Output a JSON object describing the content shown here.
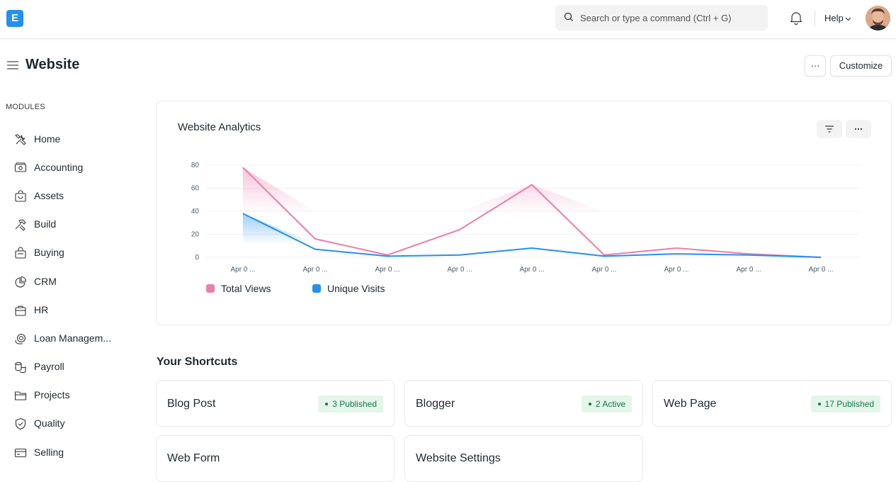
{
  "brand": {
    "logo_letter": "E",
    "color": "#2490ef"
  },
  "navbar": {
    "search_placeholder": "Search or type a command (Ctrl + G)",
    "help_label": "Help"
  },
  "page": {
    "title": "Website",
    "more_label": "···",
    "customize_label": "Customize"
  },
  "sidebar": {
    "section_label": "MODULES",
    "items": [
      {
        "label": "Home",
        "icon": "tools-icon"
      },
      {
        "label": "Accounting",
        "icon": "money-icon"
      },
      {
        "label": "Assets",
        "icon": "bag-icon"
      },
      {
        "label": "Build",
        "icon": "hammer-icon"
      },
      {
        "label": "Buying",
        "icon": "cart-icon"
      },
      {
        "label": "CRM",
        "icon": "chart-pie-icon"
      },
      {
        "label": "HR",
        "icon": "briefcase-icon"
      },
      {
        "label": "Loan Managem...",
        "icon": "loan-icon"
      },
      {
        "label": "Payroll",
        "icon": "coins-icon"
      },
      {
        "label": "Projects",
        "icon": "folder-icon"
      },
      {
        "label": "Quality",
        "icon": "shield-icon"
      },
      {
        "label": "Selling",
        "icon": "card-icon"
      }
    ]
  },
  "analytics": {
    "title": "Website Analytics",
    "chart_data": {
      "type": "line",
      "categories": [
        "Apr 0 ...",
        "Apr 0 ...",
        "Apr 0 ...",
        "Apr 0 ...",
        "Apr 0 ...",
        "Apr 0 ...",
        "Apr 0 ...",
        "Apr 0 ...",
        "Apr 0 ..."
      ],
      "y_ticks": [
        "0",
        "20",
        "40",
        "60",
        "80"
      ],
      "ylim": [
        0,
        80
      ],
      "series": [
        {
          "name": "Total Views",
          "color": "#eb7fad",
          "values": [
            78,
            16,
            2,
            24,
            63,
            2,
            8,
            3,
            0
          ]
        },
        {
          "name": "Unique Visits",
          "color": "#2490ef",
          "values": [
            38,
            7,
            1,
            2,
            8,
            1,
            3,
            2,
            0
          ]
        }
      ],
      "grid": true,
      "legend_placement": "bottom-left"
    }
  },
  "shortcuts": {
    "title": "Your Shortcuts",
    "items": [
      {
        "label": "Blog Post",
        "badge": "3 Published"
      },
      {
        "label": "Blogger",
        "badge": "2 Active"
      },
      {
        "label": "Web Page",
        "badge": "17 Published"
      },
      {
        "label": "Web Form",
        "badge": ""
      },
      {
        "label": "Website Settings",
        "badge": ""
      }
    ]
  }
}
